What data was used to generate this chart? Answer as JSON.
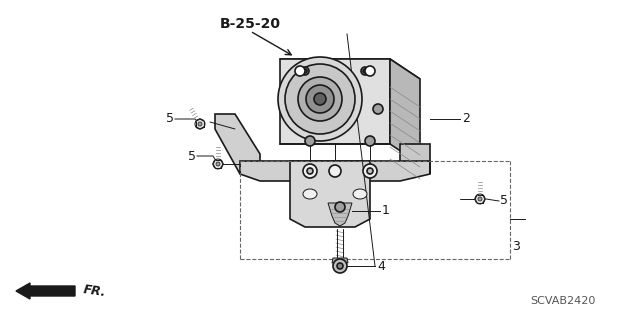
{
  "bg_color": "#ffffff",
  "line_color": "#1a1a1a",
  "title_ref": "B-25-20",
  "part_label_2": "2",
  "part_label_1": "1",
  "part_label_3": "3",
  "part_label_4": "4",
  "part_label_5": "5",
  "diagram_code": "SCVAB2420",
  "fr_label": "FR.",
  "fig_width": 6.4,
  "fig_height": 3.19,
  "dpi": 100
}
